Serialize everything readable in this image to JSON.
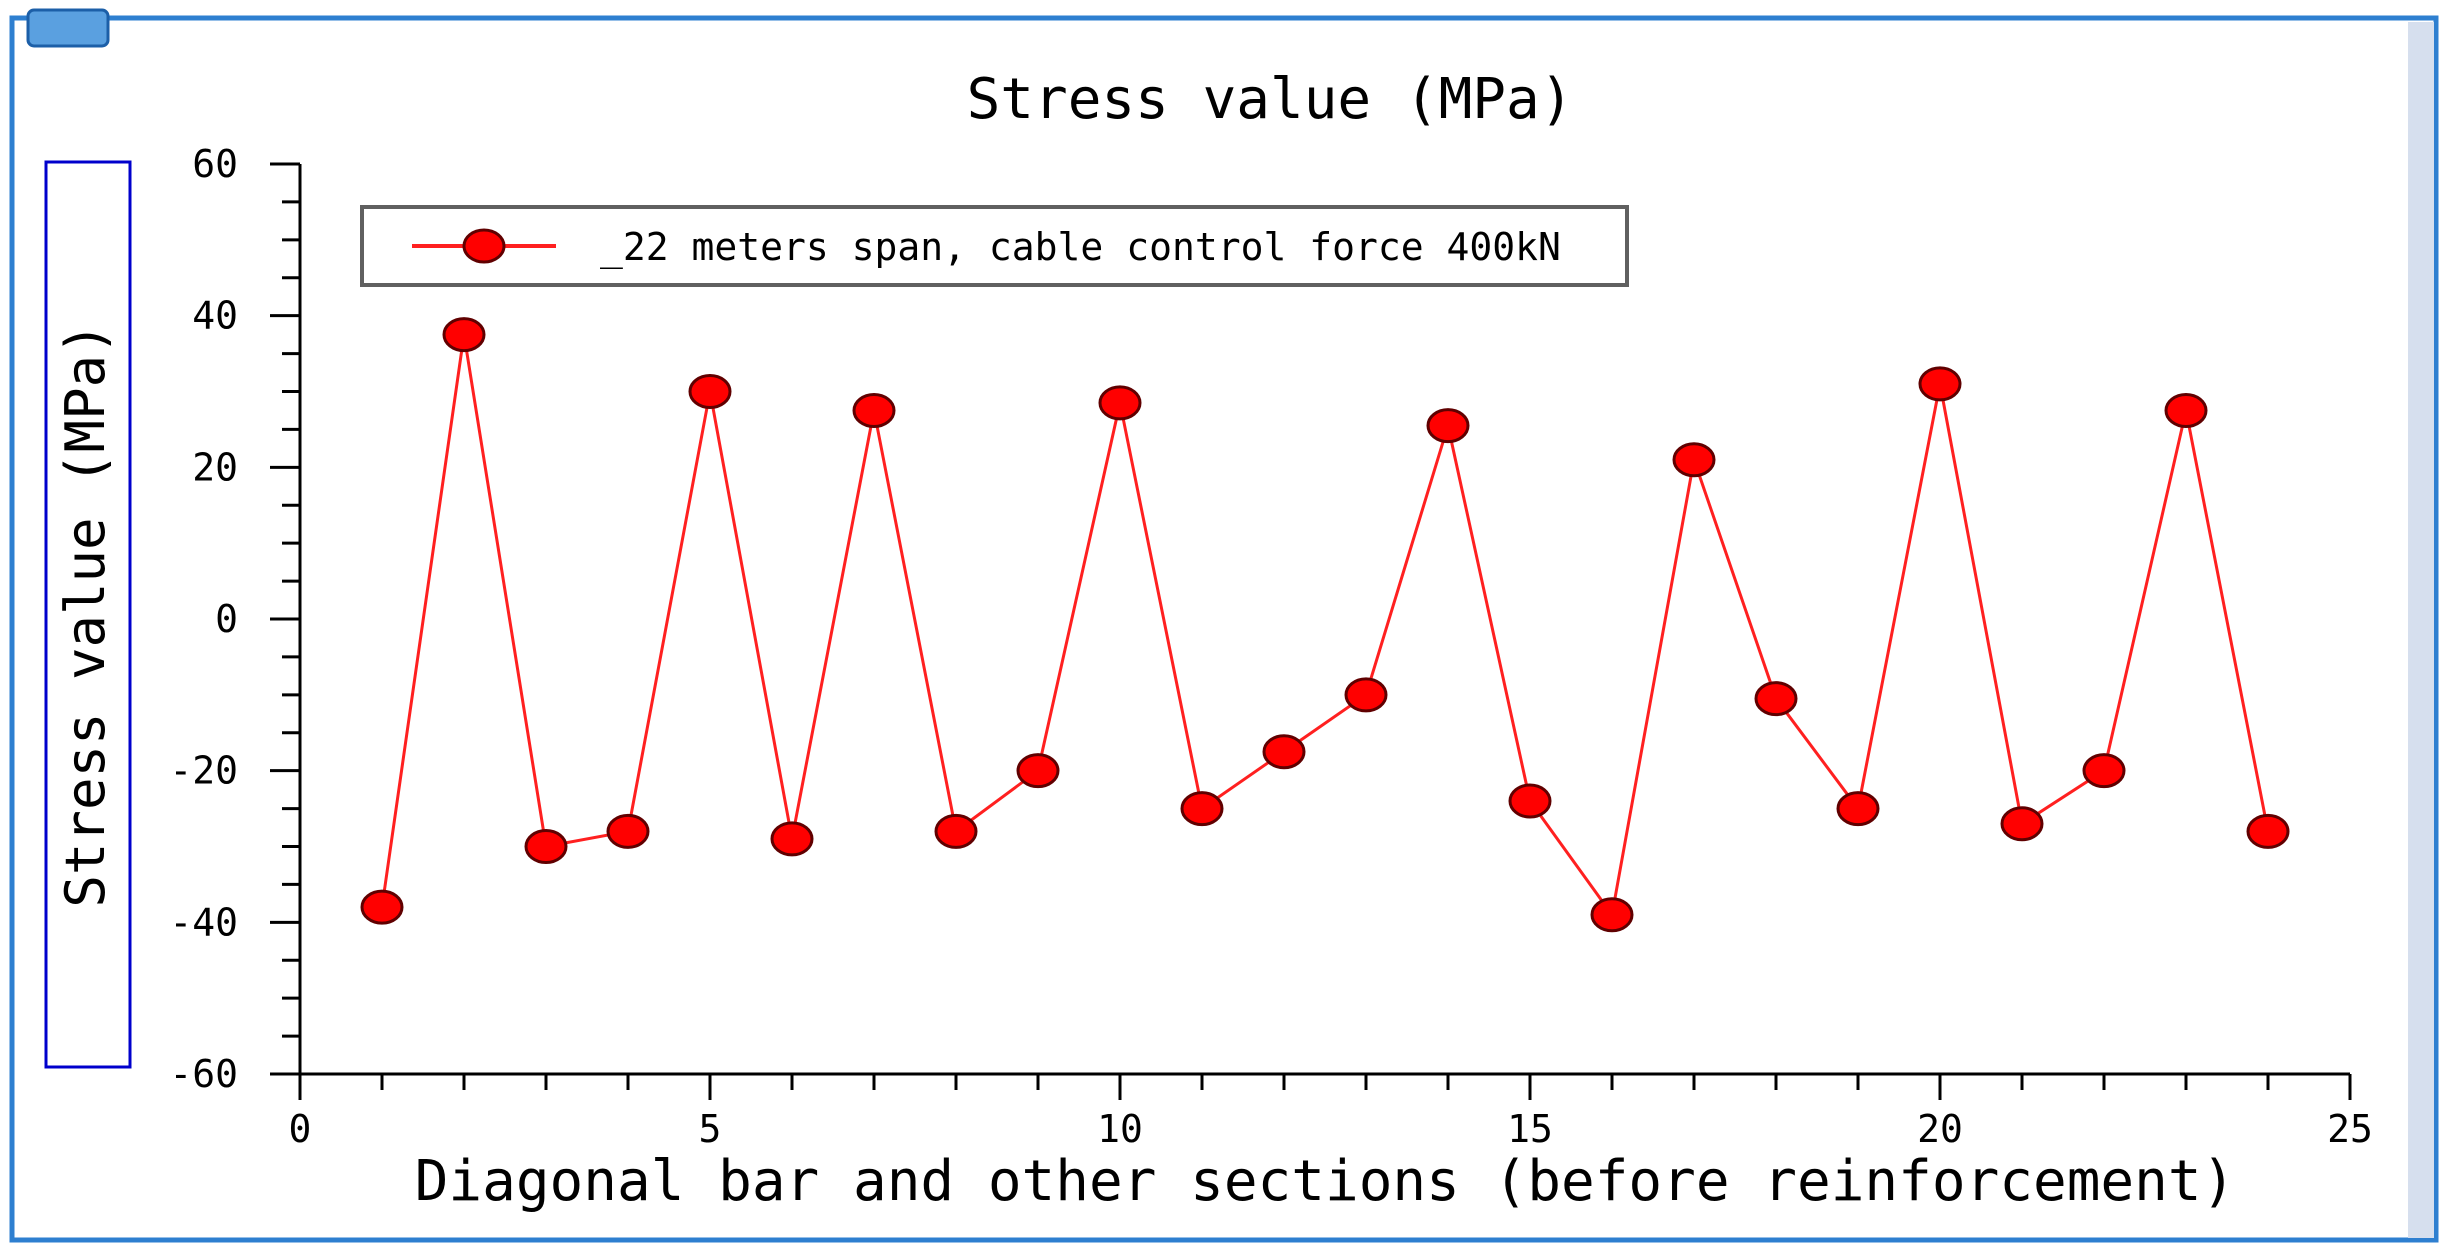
{
  "chart_data": {
    "type": "line",
    "title": "Stress value (MPa)",
    "xlabel": "Diagonal bar and other sections (before reinforcement)",
    "ylabel": "Stress value (MPa)",
    "xlim": [
      0,
      25
    ],
    "ylim": [
      -60,
      60
    ],
    "xticks": [
      0,
      5,
      10,
      15,
      20,
      25
    ],
    "yticks": [
      -60,
      -40,
      -20,
      0,
      20,
      40,
      60
    ],
    "grid": false,
    "legend_position": "top-left",
    "series": [
      {
        "name": "_22 meters span, cable control force 400kN",
        "color": "#ff0000",
        "x": [
          1,
          2,
          3,
          4,
          5,
          6,
          7,
          8,
          9,
          10,
          11,
          12,
          13,
          14,
          15,
          16,
          17,
          18,
          19,
          20,
          21,
          22,
          23,
          24
        ],
        "y": [
          -38,
          37.5,
          -30,
          -28,
          30,
          -29,
          27.5,
          -28,
          -20,
          28.5,
          -25,
          -17.5,
          -10,
          25.5,
          -24,
          -39,
          21,
          -10.5,
          -25,
          31,
          -27,
          -20,
          27.5,
          -28
        ]
      }
    ]
  },
  "colors": {
    "frame_border": "#2e7fd0",
    "series_line": "#ff2020",
    "marker_fill": "#ff0000",
    "marker_stroke": "#600000",
    "ylabel_box": "#0000cc",
    "legend_border": "#606060",
    "right_strip": "#d0d8e8"
  }
}
